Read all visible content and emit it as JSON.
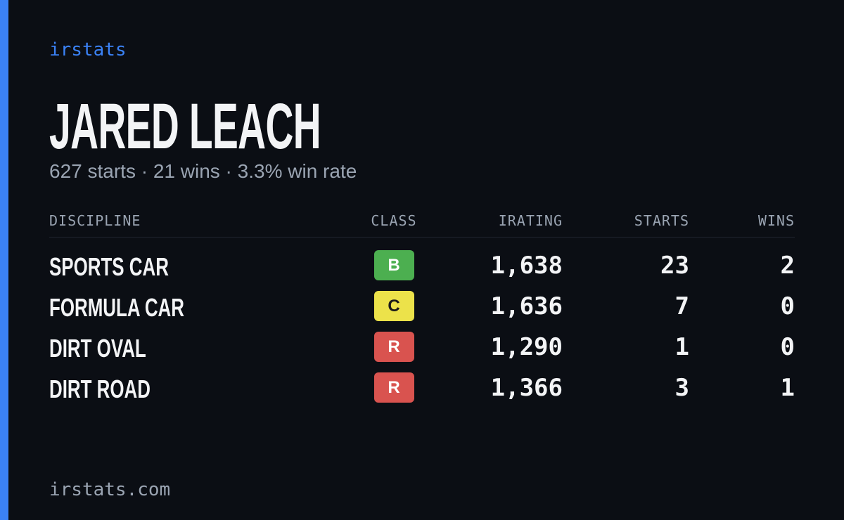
{
  "header": {
    "brand": "irstats",
    "name": "JARED LEACH",
    "summary": "627 starts · 21 wins · 3.3% win rate"
  },
  "table": {
    "columns": [
      "DISCIPLINE",
      "CLASS",
      "IRATING",
      "STARTS",
      "WINS"
    ],
    "rows": [
      [
        "SPORTS CAR",
        "B",
        "1,638",
        "23",
        "2"
      ],
      [
        "FORMULA CAR",
        "C",
        "1,636",
        "7",
        "0"
      ],
      [
        "DIRT OVAL",
        "R",
        "1,290",
        "1",
        "0"
      ],
      [
        "DIRT ROAD",
        "R",
        "1,366",
        "3",
        "1"
      ]
    ]
  },
  "footer": {
    "url": "irstats.com"
  }
}
